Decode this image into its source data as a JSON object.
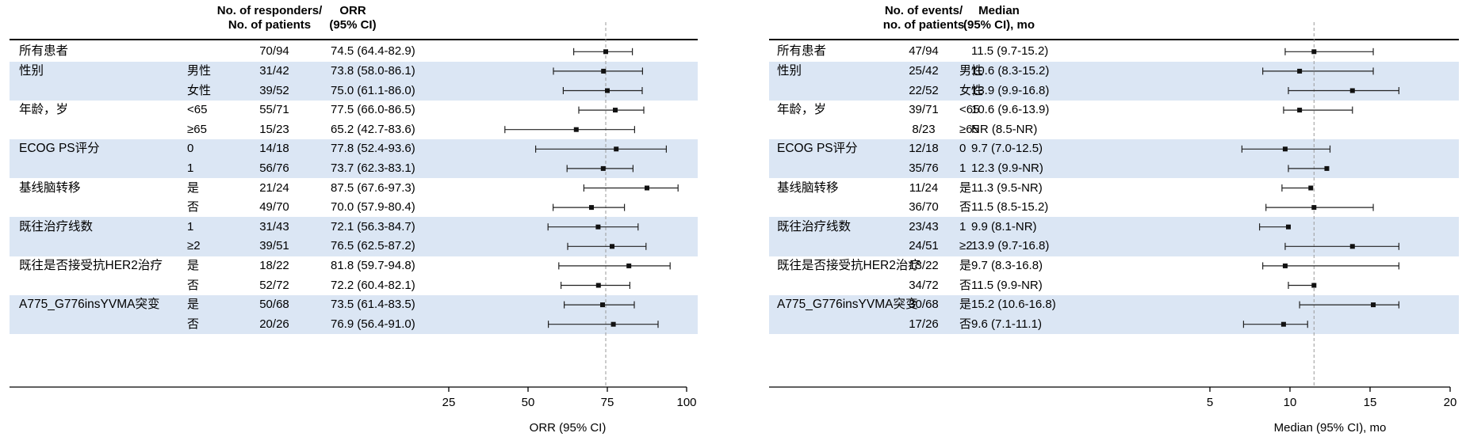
{
  "chart_data": [
    {
      "type": "forest",
      "header": {
        "count": "No. of responders/\nNo. of patients",
        "estimate": "ORR\n(95% CI)"
      },
      "xlabel": "ORR (95% CI)",
      "xlim": [
        25,
        100
      ],
      "ticks": [
        "25",
        "50",
        "75",
        "100"
      ],
      "reference": 74.5,
      "bands": [
        1,
        3,
        5,
        7
      ],
      "groups": [
        {
          "label": "所有患者",
          "rows": [
            {
              "sub": "",
              "count": "70/94",
              "est_text": "74.5 (64.4-82.9)",
              "est": 74.5,
              "lo": 64.4,
              "hi": 82.9
            }
          ]
        },
        {
          "label": "性别",
          "rows": [
            {
              "sub": "男性",
              "count": "31/42",
              "est_text": "73.8 (58.0-86.1)",
              "est": 73.8,
              "lo": 58.0,
              "hi": 86.1
            },
            {
              "sub": "女性",
              "count": "39/52",
              "est_text": "75.0 (61.1-86.0)",
              "est": 75.0,
              "lo": 61.1,
              "hi": 86.0
            }
          ]
        },
        {
          "label": "年龄，岁",
          "rows": [
            {
              "sub": "<65",
              "count": "55/71",
              "est_text": "77.5 (66.0-86.5)",
              "est": 77.5,
              "lo": 66.0,
              "hi": 86.5
            },
            {
              "sub": "≥65",
              "count": "15/23",
              "est_text": "65.2 (42.7-83.6)",
              "est": 65.2,
              "lo": 42.7,
              "hi": 83.6
            }
          ]
        },
        {
          "label": "ECOG PS评分",
          "rows": [
            {
              "sub": "0",
              "count": "14/18",
              "est_text": "77.8 (52.4-93.6)",
              "est": 77.8,
              "lo": 52.4,
              "hi": 93.6
            },
            {
              "sub": "1",
              "count": "56/76",
              "est_text": "73.7 (62.3-83.1)",
              "est": 73.7,
              "lo": 62.3,
              "hi": 83.1
            }
          ]
        },
        {
          "label": "基线脑转移",
          "rows": [
            {
              "sub": "是",
              "count": "21/24",
              "est_text": "87.5 (67.6-97.3)",
              "est": 87.5,
              "lo": 67.6,
              "hi": 97.3
            },
            {
              "sub": "否",
              "count": "49/70",
              "est_text": "70.0 (57.9-80.4)",
              "est": 70.0,
              "lo": 57.9,
              "hi": 80.4
            }
          ]
        },
        {
          "label": "既往治疗线数",
          "rows": [
            {
              "sub": "1",
              "count": "31/43",
              "est_text": "72.1 (56.3-84.7)",
              "est": 72.1,
              "lo": 56.3,
              "hi": 84.7
            },
            {
              "sub": "≥2",
              "count": "39/51",
              "est_text": "76.5 (62.5-87.2)",
              "est": 76.5,
              "lo": 62.5,
              "hi": 87.2
            }
          ]
        },
        {
          "label": "既往是否接受抗HER2治疗",
          "rows": [
            {
              "sub": "是",
              "count": "18/22",
              "est_text": "81.8 (59.7-94.8)",
              "est": 81.8,
              "lo": 59.7,
              "hi": 94.8
            },
            {
              "sub": "否",
              "count": "52/72",
              "est_text": "72.2 (60.4-82.1)",
              "est": 72.2,
              "lo": 60.4,
              "hi": 82.1
            }
          ]
        },
        {
          "label": "A775_G776insYVMA突变",
          "rows": [
            {
              "sub": "是",
              "count": "50/68",
              "est_text": "73.5 (61.4-83.5)",
              "est": 73.5,
              "lo": 61.4,
              "hi": 83.5
            },
            {
              "sub": "否",
              "count": "20/26",
              "est_text": "76.9 (56.4-91.0)",
              "est": 76.9,
              "lo": 56.4,
              "hi": 91.0
            }
          ]
        }
      ]
    },
    {
      "type": "forest",
      "header": {
        "count": "No. of events/\nno. of patients",
        "estimate": "Median\n(95% CI), mo"
      },
      "xlabel": "Median (95% CI), mo",
      "xlim": [
        5,
        20
      ],
      "ticks": [
        "5",
        "10",
        "15",
        "20"
      ],
      "reference": 11.5,
      "bands": [
        1,
        3,
        5,
        7
      ],
      "groups": [
        {
          "label": "所有患者",
          "rows": [
            {
              "sub": "",
              "count": "47/94",
              "est_text": "11.5 (9.7-15.2)",
              "est": 11.5,
              "lo": 9.7,
              "hi": 15.2
            }
          ]
        },
        {
          "label": "性别",
          "rows": [
            {
              "sub": "男性",
              "count": "25/42",
              "est_text": "10.6 (8.3-15.2)",
              "est": 10.6,
              "lo": 8.3,
              "hi": 15.2
            },
            {
              "sub": "女性",
              "count": "22/52",
              "est_text": "13.9 (9.9-16.8)",
              "est": 13.9,
              "lo": 9.9,
              "hi": 16.8
            }
          ]
        },
        {
          "label": "年龄，岁",
          "rows": [
            {
              "sub": "<65",
              "count": "39/71",
              "est_text": "10.6 (9.6-13.9)",
              "est": 10.6,
              "lo": 9.6,
              "hi": 13.9
            },
            {
              "sub": "≥65",
              "count": "8/23",
              "est_text": "NR (8.5-NR)",
              "est": null,
              "lo": null,
              "hi": null
            }
          ]
        },
        {
          "label": "ECOG PS评分",
          "rows": [
            {
              "sub": "0",
              "count": "12/18",
              "est_text": "9.7 (7.0-12.5)",
              "est": 9.7,
              "lo": 7.0,
              "hi": 12.5
            },
            {
              "sub": "1",
              "count": "35/76",
              "est_text": "12.3 (9.9-NR)",
              "est": 12.3,
              "lo": 9.9,
              "hi": null
            }
          ]
        },
        {
          "label": "基线脑转移",
          "rows": [
            {
              "sub": "是",
              "count": "11/24",
              "est_text": "11.3 (9.5-NR)",
              "est": 11.3,
              "lo": 9.5,
              "hi": null
            },
            {
              "sub": "否",
              "count": "36/70",
              "est_text": "11.5 (8.5-15.2)",
              "est": 11.5,
              "lo": 8.5,
              "hi": 15.2
            }
          ]
        },
        {
          "label": "既往治疗线数",
          "rows": [
            {
              "sub": "1",
              "count": "23/43",
              "est_text": "9.9 (8.1-NR)",
              "est": 9.9,
              "lo": 8.1,
              "hi": null
            },
            {
              "sub": "≥2",
              "count": "24/51",
              "est_text": "13.9 (9.7-16.8)",
              "est": 13.9,
              "lo": 9.7,
              "hi": 16.8
            }
          ]
        },
        {
          "label": "既往是否接受抗HER2治疗",
          "rows": [
            {
              "sub": "是",
              "count": "13/22",
              "est_text": "9.7 (8.3-16.8)",
              "est": 9.7,
              "lo": 8.3,
              "hi": 16.8
            },
            {
              "sub": "否",
              "count": "34/72",
              "est_text": "11.5 (9.9-NR)",
              "est": 11.5,
              "lo": 9.9,
              "hi": null
            }
          ]
        },
        {
          "label": "A775_G776insYVMA突变",
          "rows": [
            {
              "sub": "是",
              "count": "30/68",
              "est_text": "15.2 (10.6-16.8)",
              "est": 15.2,
              "lo": 10.6,
              "hi": 16.8
            },
            {
              "sub": "否",
              "count": "17/26",
              "est_text": "9.6 (7.1-11.1)",
              "est": 9.6,
              "lo": 7.1,
              "hi": 11.1
            }
          ]
        }
      ]
    }
  ]
}
